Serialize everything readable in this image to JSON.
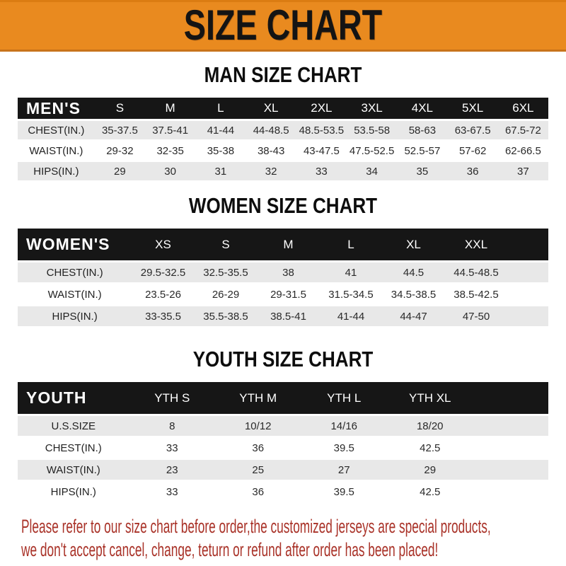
{
  "banner": {
    "title": "SIZE CHART"
  },
  "colors": {
    "banner_orange": "#E98A1F",
    "header_black": "#161616",
    "row_gray": "#E8E8E8",
    "disclaimer_red": "#A93228"
  },
  "sections": [
    {
      "id": "men",
      "title": "MAN SIZE CHART",
      "table": {
        "header": [
          "MEN'S",
          "S",
          "M",
          "L",
          "XL",
          "2XL",
          "3XL",
          "4XL",
          "5XL",
          "6XL"
        ],
        "col_widths": [
          "14.5%",
          "9.5%",
          "9.5%",
          "9.5%",
          "9.5%",
          "9.5%",
          "9.5%",
          "9.5%",
          "9.5%",
          "9.5%"
        ],
        "rows": [
          {
            "label": "CHEST(IN.)",
            "values": [
              "35-37.5",
              "37.5-41",
              "41-44",
              "44-48.5",
              "48.5-53.5",
              "53.5-58",
              "58-63",
              "63-67.5",
              "67.5-72"
            ]
          },
          {
            "label": "WAIST(IN.)",
            "values": [
              "29-32",
              "32-35",
              "35-38",
              "38-43",
              "43-47.5",
              "47.5-52.5",
              "52.5-57",
              "57-62",
              "62-66.5"
            ]
          },
          {
            "label": "HIPS(IN.)",
            "values": [
              "29",
              "30",
              "31",
              "32",
              "33",
              "34",
              "35",
              "36",
              "37"
            ]
          }
        ]
      }
    },
    {
      "id": "women",
      "title": "WOMEN SIZE CHART",
      "table": {
        "header": [
          "WOMEN'S",
          "XS",
          "S",
          "M",
          "L",
          "XL",
          "XXL"
        ],
        "col_widths": [
          "21.5%",
          "11.8%",
          "11.8%",
          "11.8%",
          "11.8%",
          "11.8%",
          "11.8%",
          "7.7%"
        ],
        "rows": [
          {
            "label": "CHEST(IN.)",
            "values": [
              "29.5-32.5",
              "32.5-35.5",
              "38",
              "41",
              "44.5",
              "44.5-48.5"
            ]
          },
          {
            "label": "WAIST(IN.)",
            "values": [
              "23.5-26",
              "26-29",
              "29-31.5",
              "31.5-34.5",
              "34.5-38.5",
              "38.5-42.5"
            ]
          },
          {
            "label": "HIPS(IN.)",
            "values": [
              "33-35.5",
              "35.5-38.5",
              "38.5-41",
              "41-44",
              "44-47",
              "47-50"
            ]
          }
        ]
      }
    },
    {
      "id": "youth",
      "title": "YOUTH SIZE CHART",
      "table": {
        "header": [
          "YOUTH",
          "YTH S",
          "YTH M",
          "YTH L",
          "YTH XL"
        ],
        "col_widths": [
          "21%",
          "16.2%",
          "16.2%",
          "16.2%",
          "16.2%",
          "14.2%"
        ],
        "rows": [
          {
            "label": "U.S.SIZE",
            "values": [
              "8",
              "10/12",
              "14/16",
              "18/20"
            ]
          },
          {
            "label": "CHEST(IN.)",
            "values": [
              "33",
              "36",
              "39.5",
              "42.5"
            ]
          },
          {
            "label": "WAIST(IN.)",
            "values": [
              "23",
              "25",
              "27",
              "29"
            ]
          },
          {
            "label": "HIPS(IN.)",
            "values": [
              "33",
              "36",
              "39.5",
              "42.5"
            ]
          }
        ]
      }
    }
  ],
  "disclaimer": {
    "line1": "Please refer to our size chart before order,the customized jerseys are special products,",
    "line2": "we don't accept cancel, change, teturn or refund after order has been placed!"
  }
}
